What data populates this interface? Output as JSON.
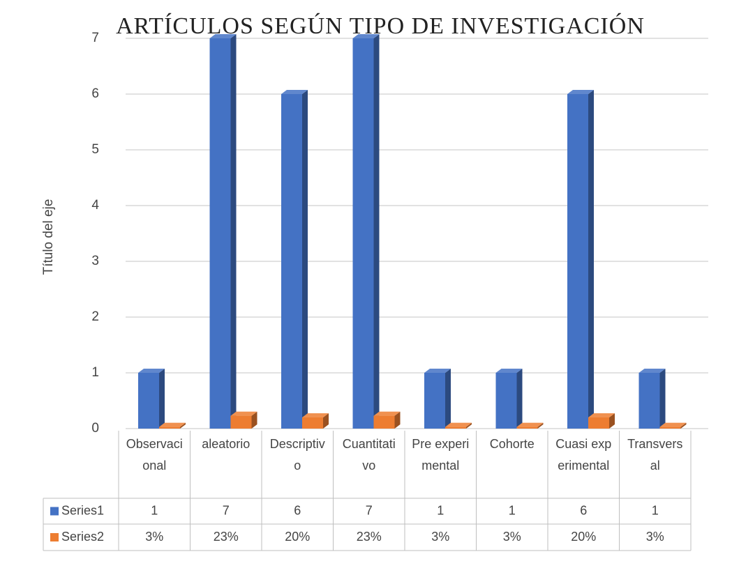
{
  "chart_data": {
    "type": "bar3d",
    "title": "ARTÍCULOS  SEGÚN TIPO DE INVESTIGACIÓN",
    "y_label": "Título del eje",
    "categories": [
      "Observacional",
      "aleatorio",
      "Descriptivo",
      "Cuantitativo",
      "Pre experimental",
      "Cohorte",
      "Cuasi experimental",
      "Transversal"
    ],
    "series": [
      {
        "name": "Series1",
        "color": "#4472c4",
        "values": [
          1,
          7,
          6,
          7,
          1,
          1,
          6,
          1
        ]
      },
      {
        "name": "Series2",
        "color": "#ed7d31",
        "values": [
          0.03,
          0.23,
          0.2,
          0.23,
          0.03,
          0.03,
          0.2,
          0.03
        ],
        "value_labels": [
          "3%",
          "23%",
          "20%",
          "23%",
          "3%",
          "3%",
          "20%",
          "3%"
        ]
      }
    ],
    "ylim": [
      0,
      7
    ],
    "yticks": [
      0,
      1,
      2,
      3,
      4,
      5,
      6,
      7
    ],
    "grid": true,
    "data_table": true
  }
}
